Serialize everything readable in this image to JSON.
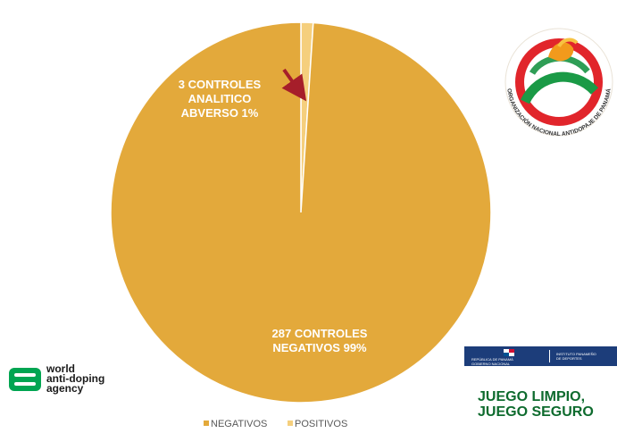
{
  "chart_data": {
    "type": "pie",
    "categories": [
      "NEGATIVOS",
      "POSITIVOS"
    ],
    "values": [
      287,
      3
    ],
    "percent_labels": [
      "99%",
      "1%"
    ],
    "data_labels": [
      [
        "287 CONTROLES",
        "NEGATIVOS 99%"
      ],
      [
        "3 CONTROLES",
        "ANALITICO",
        "ABVERSO 1%"
      ]
    ],
    "legend": {
      "position": "bottom",
      "entries": [
        "NEGATIVOS",
        "POSITIVOS"
      ]
    },
    "colors": [
      "#e3a93b",
      "#f5cf7d"
    ],
    "arrow_color": "#a61e2a"
  },
  "logos": {
    "wada": {
      "lines": [
        "world",
        "anti-doping",
        "agency"
      ],
      "color": "#00a551"
    },
    "onad": {
      "text": "ORGANIZACIÓN NACIONAL ANTIDOPAJE DE PANAMÁ"
    },
    "gov_strip": {
      "left": [
        "REPÚBLICA DE PANAMÁ",
        "GOBIERNO NACIONAL"
      ],
      "right": [
        "INSTITUTO PANAMEÑO",
        "DE DEPORTES"
      ]
    },
    "slogan": [
      "JUEGO LIMPIO,",
      "JUEGO SEGURO"
    ]
  }
}
